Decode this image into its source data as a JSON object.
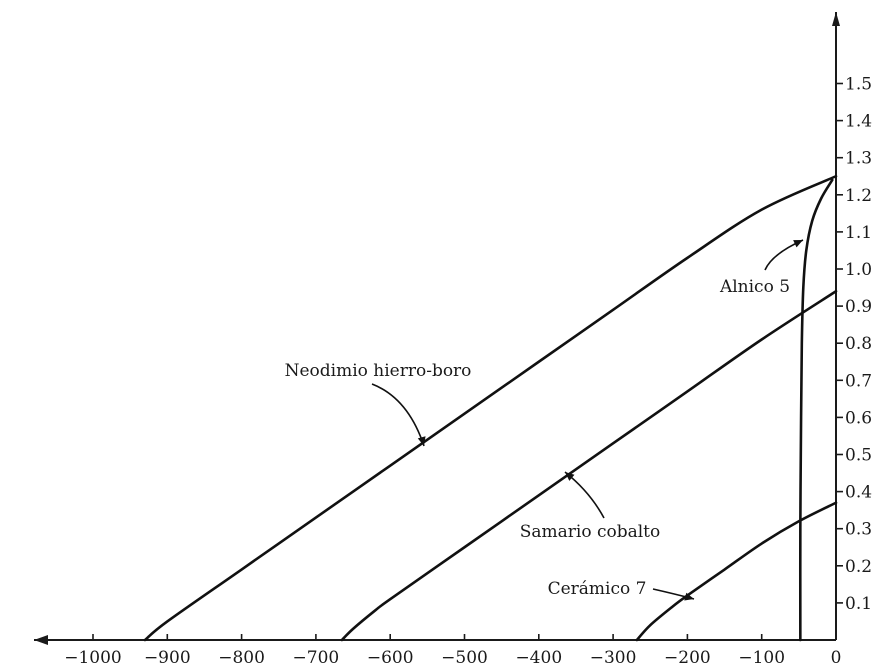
{
  "chart_data": {
    "type": "line",
    "title": "",
    "xlabel": "",
    "ylabel": "",
    "xlim": [
      -1020,
      0
    ],
    "ylim": [
      0,
      1.6
    ],
    "grid": false,
    "legend": "none",
    "x_ticks": [
      -1000,
      -900,
      -800,
      -700,
      -600,
      -500,
      -400,
      -300,
      -200,
      -100,
      0
    ],
    "x_tick_labels": [
      "−1000",
      "−900",
      "−800",
      "−700",
      "−600",
      "−500",
      "−400",
      "−300",
      "−200",
      "−100",
      "0"
    ],
    "y_ticks": [
      0.1,
      0.2,
      0.3,
      0.4,
      0.5,
      0.6,
      0.7,
      0.8,
      0.9,
      1.0,
      1.1,
      1.2,
      1.3,
      1.4,
      1.5
    ],
    "y_tick_labels": [
      "0.1",
      "0.2",
      "0.3",
      "0.4",
      "0.5",
      "0.6",
      "0.7",
      "0.8",
      "0.9",
      "1.0",
      "1.1",
      "1.2",
      "1.3",
      "1.4",
      "1.5"
    ],
    "series": [
      {
        "name": "Neodimio hierro-boro",
        "x": [
          -930,
          -900,
          -800,
          -700,
          -600,
          -500,
          -400,
          -300,
          -200,
          -100,
          0
        ],
        "y": [
          0,
          0.05,
          0.19,
          0.33,
          0.47,
          0.61,
          0.75,
          0.89,
          1.03,
          1.16,
          1.25
        ]
      },
      {
        "name": "Samario cobalto",
        "x": [
          -665,
          -650,
          -620,
          -600,
          -500,
          -400,
          -300,
          -200,
          -100,
          0
        ],
        "y": [
          0,
          0.03,
          0.08,
          0.11,
          0.25,
          0.39,
          0.53,
          0.67,
          0.81,
          0.94
        ]
      },
      {
        "name": "Cerámico 7",
        "x": [
          -268,
          -250,
          -220,
          -200,
          -150,
          -100,
          -50,
          0
        ],
        "y": [
          0,
          0.04,
          0.09,
          0.12,
          0.19,
          0.26,
          0.32,
          0.37
        ]
      },
      {
        "name": "Alnico 5",
        "x": [
          -48,
          -48,
          -47,
          -46,
          -44,
          -40,
          -32,
          -20,
          -5
        ],
        "y": [
          0,
          0.3,
          0.6,
          0.8,
          0.95,
          1.05,
          1.13,
          1.19,
          1.24
        ]
      }
    ],
    "annotations": [
      {
        "text": "Neodimio hierro-boro",
        "series": 0
      },
      {
        "text": "Samario cobalto",
        "series": 1
      },
      {
        "text": "Cerámico 7",
        "series": 2
      },
      {
        "text": "Alnico 5",
        "series": 3
      }
    ]
  }
}
